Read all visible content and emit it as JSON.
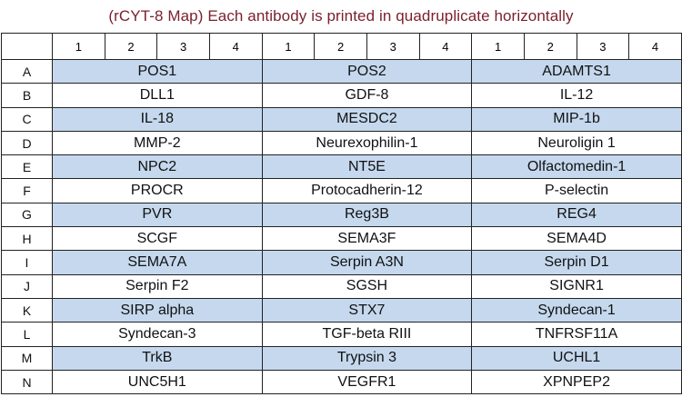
{
  "title": "(rCYT-8 Map) Each antibody is printed in quadruplicate horizontally",
  "column_headers": [
    "1",
    "2",
    "3",
    "4",
    "1",
    "2",
    "3",
    "4",
    "1",
    "2",
    "3",
    "4"
  ],
  "shade_color": "#c5d8ee",
  "rows": [
    {
      "label": "A",
      "shaded": true,
      "cells": [
        "POS1",
        "POS2",
        "ADAMTS1"
      ]
    },
    {
      "label": "B",
      "shaded": false,
      "cells": [
        "DLL1",
        "GDF-8",
        "IL-12"
      ]
    },
    {
      "label": "C",
      "shaded": true,
      "cells": [
        "IL-18",
        "MESDC2",
        "MIP-1b"
      ]
    },
    {
      "label": "D",
      "shaded": false,
      "cells": [
        "MMP-2",
        "Neurexophilin-1",
        "Neuroligin 1"
      ]
    },
    {
      "label": "E",
      "shaded": true,
      "cells": [
        "NPC2",
        "NT5E",
        "Olfactomedin-1"
      ]
    },
    {
      "label": "F",
      "shaded": false,
      "cells": [
        "PROCR",
        "Protocadherin-12",
        "P-selectin"
      ]
    },
    {
      "label": "G",
      "shaded": true,
      "cells": [
        "PVR",
        "Reg3B",
        "REG4"
      ]
    },
    {
      "label": "H",
      "shaded": false,
      "cells": [
        "SCGF",
        "SEMA3F",
        "SEMA4D"
      ]
    },
    {
      "label": "I",
      "shaded": true,
      "cells": [
        "SEMA7A",
        "Serpin A3N",
        "Serpin D1"
      ]
    },
    {
      "label": "J",
      "shaded": false,
      "cells": [
        "Serpin F2",
        "SGSH",
        "SIGNR1"
      ]
    },
    {
      "label": "K",
      "shaded": true,
      "cells": [
        "SIRP alpha",
        "STX7",
        "Syndecan-1"
      ]
    },
    {
      "label": "L",
      "shaded": false,
      "cells": [
        "Syndecan-3",
        "TGF-beta RIII",
        "TNFRSF11A"
      ]
    },
    {
      "label": "M",
      "shaded": true,
      "cells": [
        "TrkB",
        "Trypsin 3",
        "UCHL1"
      ]
    },
    {
      "label": "N",
      "shaded": false,
      "cells": [
        "UNC5H1",
        "VEGFR1",
        "XPNPEP2"
      ]
    }
  ]
}
